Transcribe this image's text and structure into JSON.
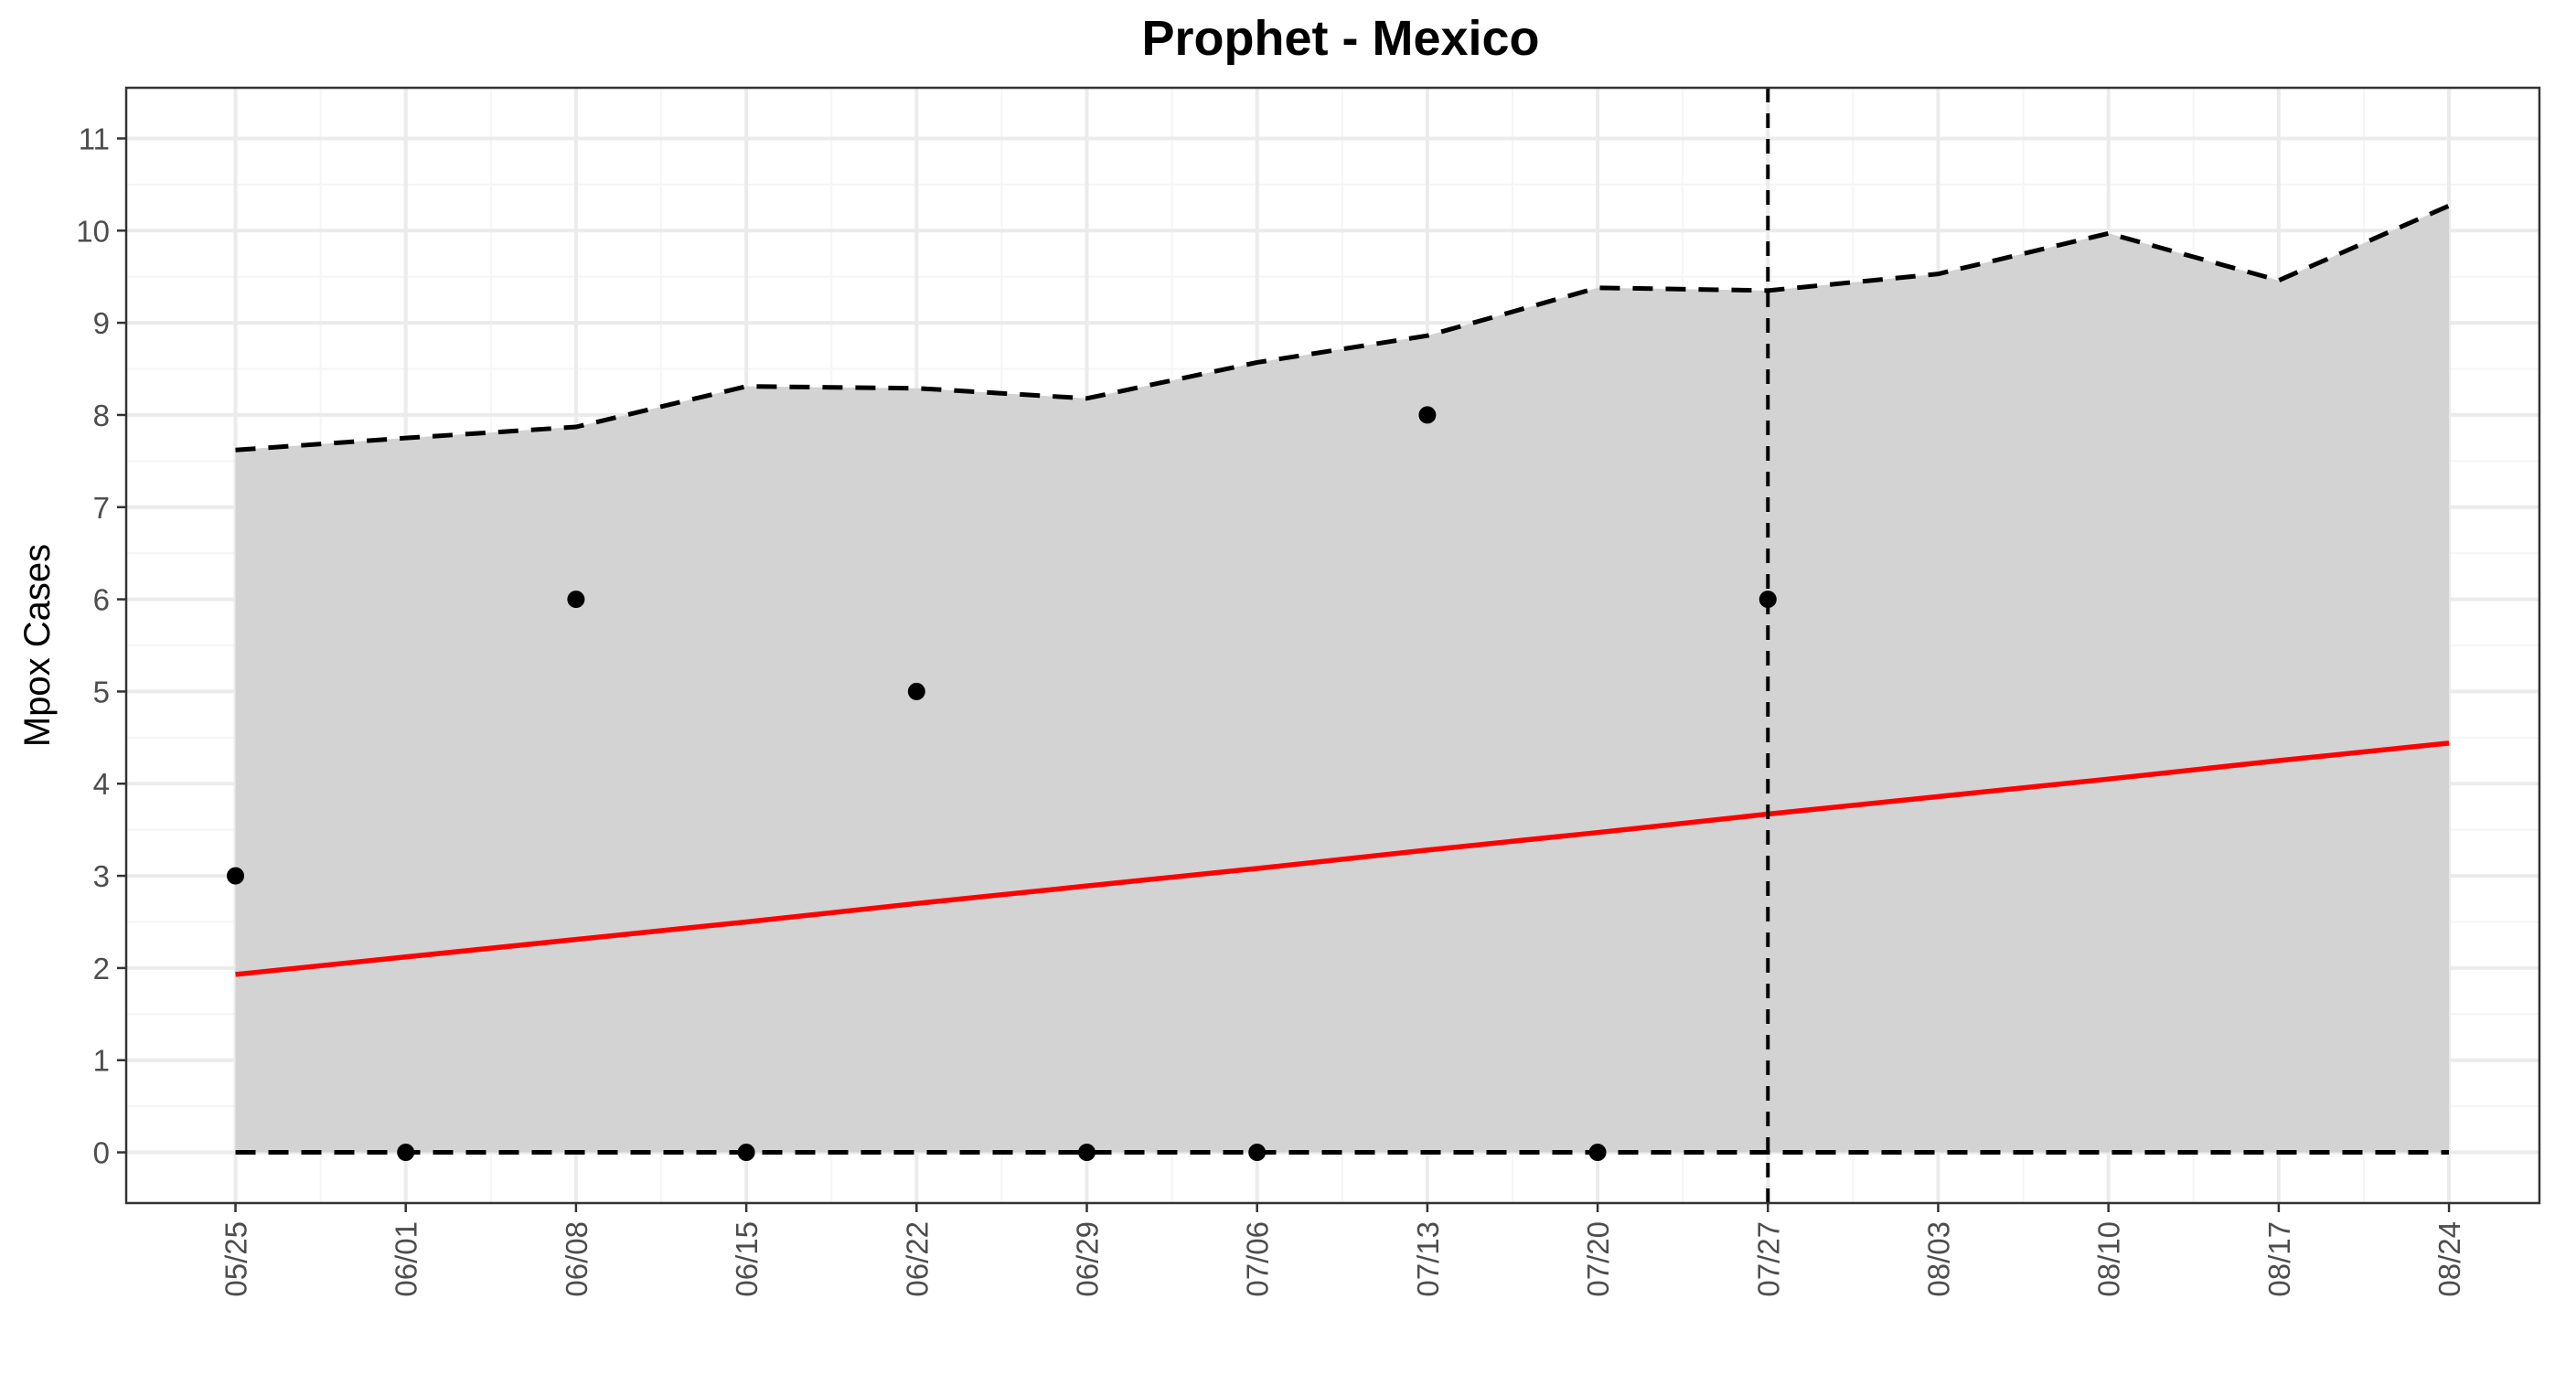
{
  "chart_data": {
    "type": "line",
    "title": "Prophet - Mexico",
    "xlabel": "",
    "ylabel": "Mpox Cases",
    "x_dates": [
      "05/25",
      "06/01",
      "06/08",
      "06/15",
      "06/22",
      "06/29",
      "07/06",
      "07/13",
      "07/20",
      "07/27",
      "08/03",
      "08/10",
      "08/17",
      "08/24"
    ],
    "ylim": [
      -0.55,
      11.55
    ],
    "yticks": [
      0,
      1,
      2,
      3,
      4,
      5,
      6,
      7,
      8,
      9,
      10,
      11
    ],
    "observed": [
      {
        "x": "05/25",
        "y": 3
      },
      {
        "x": "06/01",
        "y": 0
      },
      {
        "x": "06/08",
        "y": 6
      },
      {
        "x": "06/15",
        "y": 0
      },
      {
        "x": "06/22",
        "y": 5
      },
      {
        "x": "06/29",
        "y": 0
      },
      {
        "x": "07/06",
        "y": 0
      },
      {
        "x": "07/13",
        "y": 8
      },
      {
        "x": "07/20",
        "y": 0
      },
      {
        "x": "07/27",
        "y": 6
      }
    ],
    "forecast_start": "07/27",
    "series": [
      {
        "values": [
          1.93,
          2.12,
          2.31,
          2.5,
          2.7,
          2.89,
          3.08,
          3.28,
          3.47,
          3.67,
          3.86,
          4.05,
          4.25,
          4.44
        ]
      },
      {
        "values": [
          7.62,
          7.75,
          7.87,
          8.31,
          8.29,
          8.18,
          8.57,
          8.86,
          9.38,
          9.35,
          9.53,
          9.97,
          9.46,
          10.27
        ]
      },
      {
        "values": [
          0,
          0,
          0,
          0,
          0,
          0,
          0,
          0,
          0,
          0,
          0,
          0,
          0,
          0
        ]
      }
    ],
    "colors": {
      "forecast_line": "#ff0000",
      "interval_fill": "#d3d3d3",
      "interval_bounds": "#000000",
      "observed_points": "#000000",
      "panel_border": "#333333",
      "grid_major": "#ebebeb",
      "grid_minor": "#f5f5f5"
    },
    "grid": true,
    "legend": "none"
  }
}
